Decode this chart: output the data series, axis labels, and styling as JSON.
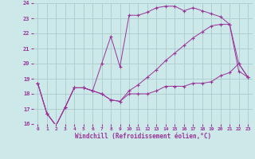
{
  "xlabel": "Windchill (Refroidissement éolien,°C)",
  "bg_color": "#cce8e8",
  "grid_color": "#aacccc",
  "line_color": "#993399",
  "xlim": [
    -0.5,
    23.5
  ],
  "ylim": [
    16,
    24
  ],
  "yticks": [
    16,
    17,
    18,
    19,
    20,
    21,
    22,
    23,
    24
  ],
  "xticks": [
    0,
    1,
    2,
    3,
    4,
    5,
    6,
    7,
    8,
    9,
    10,
    11,
    12,
    13,
    14,
    15,
    16,
    17,
    18,
    19,
    20,
    21,
    22,
    23
  ],
  "series": [
    {
      "x": [
        0,
        1,
        2,
        3,
        4,
        5,
        6,
        7,
        8,
        9,
        10,
        11,
        12,
        13,
        14,
        15,
        16,
        17,
        18,
        19,
        20,
        21,
        22,
        23
      ],
      "y": [
        18.7,
        16.7,
        15.9,
        17.1,
        18.4,
        18.4,
        18.2,
        18.0,
        17.6,
        17.5,
        18.0,
        18.0,
        18.0,
        18.2,
        18.5,
        18.5,
        18.5,
        18.7,
        18.7,
        18.8,
        19.2,
        19.4,
        20.0,
        19.1
      ]
    },
    {
      "x": [
        0,
        1,
        2,
        3,
        4,
        5,
        6,
        7,
        8,
        9,
        10,
        11,
        12,
        13,
        14,
        15,
        16,
        17,
        18,
        19,
        20,
        21,
        22,
        23
      ],
      "y": [
        18.7,
        16.7,
        15.9,
        17.1,
        18.4,
        18.4,
        18.2,
        20.0,
        21.8,
        19.8,
        23.2,
        23.2,
        23.4,
        23.7,
        23.8,
        23.8,
        23.5,
        23.7,
        23.5,
        23.3,
        23.1,
        22.6,
        19.5,
        19.1
      ]
    },
    {
      "x": [
        0,
        1,
        2,
        3,
        4,
        5,
        6,
        7,
        8,
        9,
        10,
        11,
        12,
        13,
        14,
        15,
        16,
        17,
        18,
        19,
        20,
        21,
        22,
        23
      ],
      "y": [
        18.7,
        16.7,
        15.9,
        17.1,
        18.4,
        18.4,
        18.2,
        18.0,
        17.6,
        17.5,
        18.2,
        18.6,
        19.1,
        19.6,
        20.2,
        20.7,
        21.2,
        21.7,
        22.1,
        22.5,
        22.6,
        22.6,
        20.0,
        19.1
      ]
    }
  ]
}
